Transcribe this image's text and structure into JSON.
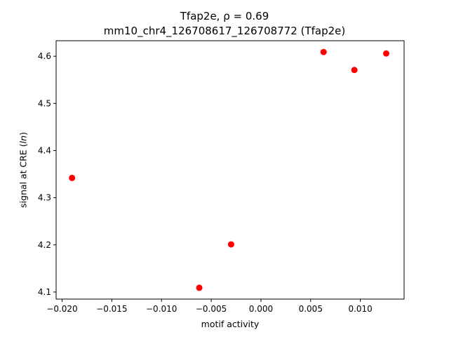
{
  "chart_data": {
    "type": "scatter",
    "title": {
      "gene": "Tfap2e",
      "rho_symbol": "ρ",
      "rho_value": "0.69",
      "line1": "Tfap2e, ρ = 0.69",
      "line2": "mm10_chr4_126708617_126708772 (Tfap2e)"
    },
    "xlabel": "motif activity",
    "ylabel": {
      "text_before": "signal at CRE (",
      "text_italic": "ln",
      "text_after": ")"
    },
    "xlim": [
      -0.0206,
      0.0144
    ],
    "ylim": [
      4.085,
      4.633
    ],
    "xticks": [
      -0.02,
      -0.015,
      -0.01,
      -0.005,
      0.0,
      0.005,
      0.01
    ],
    "xtick_labels": [
      "−0.020",
      "−0.015",
      "−0.010",
      "−0.005",
      "0.000",
      "0.005",
      "0.010"
    ],
    "yticks": [
      4.1,
      4.2,
      4.3,
      4.4,
      4.5,
      4.6
    ],
    "ytick_labels": [
      "4.1",
      "4.2",
      "4.3",
      "4.4",
      "4.5",
      "4.6"
    ],
    "grid": false,
    "marker_color": "#ff0000",
    "points": [
      {
        "x": -0.019,
        "y": 4.342
      },
      {
        "x": -0.0062,
        "y": 4.109
      },
      {
        "x": -0.003,
        "y": 4.201
      },
      {
        "x": 0.0063,
        "y": 4.609
      },
      {
        "x": 0.0094,
        "y": 4.571
      },
      {
        "x": 0.0126,
        "y": 4.606
      }
    ]
  }
}
